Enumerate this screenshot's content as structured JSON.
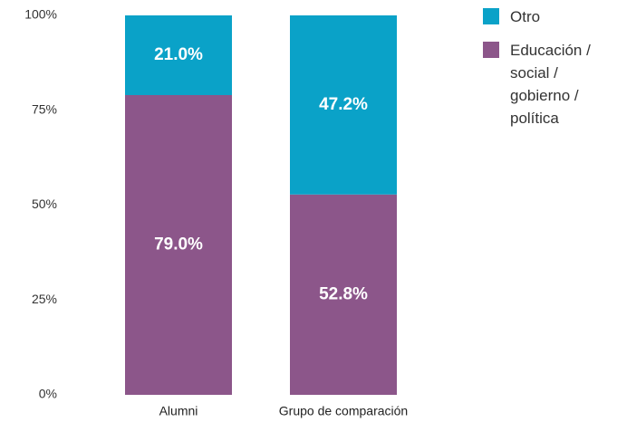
{
  "chart_data": {
    "type": "stacked_bar",
    "categories": [
      "Alumni",
      "Grupo de comparación"
    ],
    "series": [
      {
        "name": "Educación / social / gobierno / política",
        "color": "#8c568a",
        "values": [
          79.0,
          52.8
        ],
        "value_labels": [
          "79.0%",
          "52.8%"
        ]
      },
      {
        "name": "Otro",
        "color": "#0aa2c8",
        "values": [
          21.0,
          47.2
        ],
        "value_labels": [
          "21.0%",
          "47.2%"
        ]
      }
    ],
    "ylim": [
      0,
      100
    ],
    "yticks": [
      {
        "value": 0,
        "label": "0%"
      },
      {
        "value": 25,
        "label": "25%"
      },
      {
        "value": 50,
        "label": "50%"
      },
      {
        "value": 75,
        "label": "75%"
      },
      {
        "value": 100,
        "label": "100%"
      }
    ],
    "grid": false,
    "legend": "right"
  }
}
